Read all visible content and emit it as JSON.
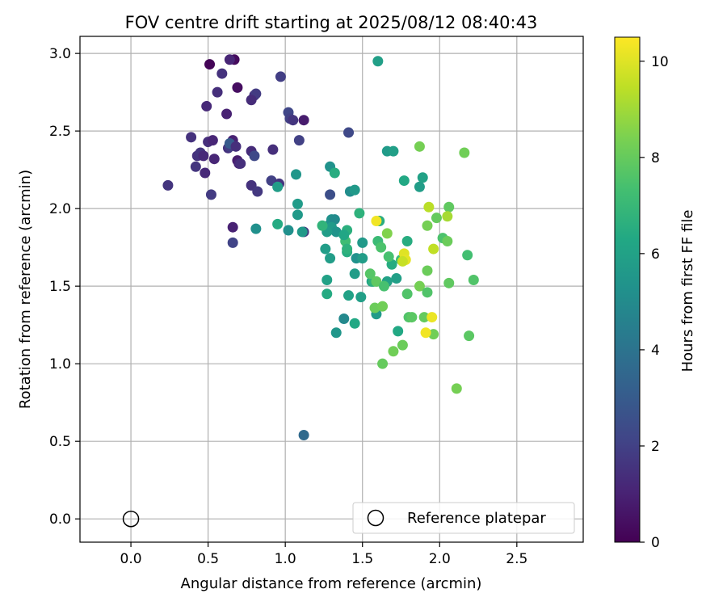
{
  "chart_data": {
    "type": "scatter",
    "title": "FOV centre drift starting at 2025/08/12 08:40:43",
    "xlabel": "Angular distance from reference (arcmin)",
    "ylabel": "Rotation from reference (arcmin)",
    "xlim": [
      -0.33,
      2.93
    ],
    "ylim": [
      -0.15,
      3.11
    ],
    "xticks": [
      "0.0",
      "0.5",
      "1.0",
      "1.5",
      "2.0",
      "2.5"
    ],
    "yticks": [
      "0.0",
      "0.5",
      "1.0",
      "1.5",
      "2.0",
      "2.5",
      "3.0"
    ],
    "grid": true,
    "legend": {
      "position": "lower-right",
      "entries": [
        "Reference platepar"
      ]
    },
    "reference_point": {
      "x": 0.0,
      "y": 0.0,
      "marker": "hollow-circle",
      "label": "Reference platepar"
    },
    "colorbar": {
      "label": "Hours from first FF file",
      "range": [
        0,
        10.5
      ],
      "ticks": [
        "0",
        "2",
        "4",
        "6",
        "8",
        "10"
      ],
      "colormap": "viridis"
    },
    "points": [
      {
        "x": 0.51,
        "y": 2.93,
        "c": 0.1
      },
      {
        "x": 0.67,
        "y": 2.96,
        "c": 0.3
      },
      {
        "x": 0.64,
        "y": 2.96,
        "c": 1.1
      },
      {
        "x": 0.59,
        "y": 2.87,
        "c": 1.5
      },
      {
        "x": 0.69,
        "y": 2.78,
        "c": 0.4
      },
      {
        "x": 0.56,
        "y": 2.75,
        "c": 1.4
      },
      {
        "x": 0.8,
        "y": 2.73,
        "c": 1.5
      },
      {
        "x": 0.81,
        "y": 2.74,
        "c": 1.8
      },
      {
        "x": 0.78,
        "y": 2.7,
        "c": 1.3
      },
      {
        "x": 0.97,
        "y": 2.85,
        "c": 1.9
      },
      {
        "x": 0.49,
        "y": 2.66,
        "c": 1.2
      },
      {
        "x": 0.62,
        "y": 2.61,
        "c": 1.0
      },
      {
        "x": 1.02,
        "y": 2.62,
        "c": 2.2
      },
      {
        "x": 1.03,
        "y": 2.58,
        "c": 2.0
      },
      {
        "x": 1.05,
        "y": 2.57,
        "c": 1.6
      },
      {
        "x": 1.12,
        "y": 2.57,
        "c": 0.8
      },
      {
        "x": 1.41,
        "y": 2.49,
        "c": 2.3
      },
      {
        "x": 0.39,
        "y": 2.46,
        "c": 1.5
      },
      {
        "x": 0.5,
        "y": 2.43,
        "c": 1.4
      },
      {
        "x": 0.53,
        "y": 2.44,
        "c": 1.1
      },
      {
        "x": 0.66,
        "y": 2.44,
        "c": 1.0
      },
      {
        "x": 0.63,
        "y": 2.39,
        "c": 1.5
      },
      {
        "x": 0.64,
        "y": 2.4,
        "c": 1.9
      },
      {
        "x": 0.64,
        "y": 2.42,
        "c": 3.0
      },
      {
        "x": 0.68,
        "y": 2.4,
        "c": 1.4
      },
      {
        "x": 1.09,
        "y": 2.44,
        "c": 2.0
      },
      {
        "x": 0.92,
        "y": 2.38,
        "c": 1.4
      },
      {
        "x": 0.78,
        "y": 2.37,
        "c": 1.3
      },
      {
        "x": 0.43,
        "y": 2.34,
        "c": 1.5
      },
      {
        "x": 0.45,
        "y": 2.36,
        "c": 1.6
      },
      {
        "x": 0.47,
        "y": 2.34,
        "c": 1.2
      },
      {
        "x": 0.8,
        "y": 2.34,
        "c": 2.3
      },
      {
        "x": 0.54,
        "y": 2.32,
        "c": 1.1
      },
      {
        "x": 0.69,
        "y": 2.31,
        "c": 0.8
      },
      {
        "x": 0.7,
        "y": 2.29,
        "c": 1.1
      },
      {
        "x": 0.71,
        "y": 2.29,
        "c": 1.4
      },
      {
        "x": 0.42,
        "y": 2.27,
        "c": 1.6
      },
      {
        "x": 0.48,
        "y": 2.23,
        "c": 1.2
      },
      {
        "x": 0.24,
        "y": 2.15,
        "c": 1.6
      },
      {
        "x": 0.78,
        "y": 2.15,
        "c": 1.5
      },
      {
        "x": 0.91,
        "y": 2.18,
        "c": 2.0
      },
      {
        "x": 0.96,
        "y": 2.16,
        "c": 1.6
      },
      {
        "x": 0.52,
        "y": 2.09,
        "c": 1.8
      },
      {
        "x": 0.82,
        "y": 2.11,
        "c": 1.7
      },
      {
        "x": 1.29,
        "y": 2.09,
        "c": 2.5
      },
      {
        "x": 0.66,
        "y": 1.88,
        "c": 1.0
      },
      {
        "x": 0.66,
        "y": 1.78,
        "c": 2.1
      },
      {
        "x": 1.12,
        "y": 1.85,
        "c": 1.6
      },
      {
        "x": 1.12,
        "y": 0.54,
        "c": 3.6
      },
      {
        "x": 1.6,
        "y": 2.95,
        "c": 5.9
      },
      {
        "x": 1.29,
        "y": 2.27,
        "c": 5.3
      },
      {
        "x": 1.07,
        "y": 2.22,
        "c": 5.5
      },
      {
        "x": 1.32,
        "y": 2.23,
        "c": 6.5
      },
      {
        "x": 0.95,
        "y": 2.14,
        "c": 5.8
      },
      {
        "x": 1.42,
        "y": 2.11,
        "c": 5.1
      },
      {
        "x": 1.45,
        "y": 2.12,
        "c": 5.6
      },
      {
        "x": 1.66,
        "y": 2.37,
        "c": 5.7
      },
      {
        "x": 1.7,
        "y": 2.37,
        "c": 5.9
      },
      {
        "x": 1.77,
        "y": 2.18,
        "c": 6.3
      },
      {
        "x": 1.87,
        "y": 2.14,
        "c": 5.8
      },
      {
        "x": 1.89,
        "y": 2.2,
        "c": 6.0
      },
      {
        "x": 1.08,
        "y": 2.03,
        "c": 5.7
      },
      {
        "x": 1.08,
        "y": 1.96,
        "c": 5.6
      },
      {
        "x": 1.29,
        "y": 1.9,
        "c": 5.3
      },
      {
        "x": 1.3,
        "y": 1.93,
        "c": 5.3
      },
      {
        "x": 1.32,
        "y": 1.93,
        "c": 5.0
      },
      {
        "x": 1.3,
        "y": 1.88,
        "c": 5.7
      },
      {
        "x": 1.33,
        "y": 1.85,
        "c": 5.4
      },
      {
        "x": 1.27,
        "y": 1.85,
        "c": 5.8
      },
      {
        "x": 1.24,
        "y": 1.89,
        "c": 6.8
      },
      {
        "x": 1.48,
        "y": 1.97,
        "c": 6.7
      },
      {
        "x": 0.95,
        "y": 1.9,
        "c": 6.4
      },
      {
        "x": 0.81,
        "y": 1.87,
        "c": 5.2
      },
      {
        "x": 1.02,
        "y": 1.86,
        "c": 5.2
      },
      {
        "x": 1.11,
        "y": 1.85,
        "c": 5.6
      },
      {
        "x": 1.39,
        "y": 1.79,
        "c": 7.2
      },
      {
        "x": 1.4,
        "y": 1.86,
        "c": 6.6
      },
      {
        "x": 1.38,
        "y": 1.83,
        "c": 6.2
      },
      {
        "x": 1.26,
        "y": 1.74,
        "c": 5.8
      },
      {
        "x": 1.4,
        "y": 1.72,
        "c": 6.5
      },
      {
        "x": 1.4,
        "y": 1.74,
        "c": 6.7
      },
      {
        "x": 1.46,
        "y": 1.68,
        "c": 5.3
      },
      {
        "x": 1.5,
        "y": 1.68,
        "c": 5.8
      },
      {
        "x": 1.5,
        "y": 1.78,
        "c": 5.6
      },
      {
        "x": 1.29,
        "y": 1.68,
        "c": 5.8
      },
      {
        "x": 1.27,
        "y": 1.54,
        "c": 6.0
      },
      {
        "x": 1.45,
        "y": 1.58,
        "c": 5.8
      },
      {
        "x": 1.56,
        "y": 1.53,
        "c": 6.1
      },
      {
        "x": 1.57,
        "y": 1.53,
        "c": 6.7
      },
      {
        "x": 1.27,
        "y": 1.45,
        "c": 6.4
      },
      {
        "x": 1.41,
        "y": 1.44,
        "c": 6.0
      },
      {
        "x": 1.49,
        "y": 1.43,
        "c": 5.9
      },
      {
        "x": 1.38,
        "y": 1.29,
        "c": 4.9
      },
      {
        "x": 1.33,
        "y": 1.2,
        "c": 5.5
      },
      {
        "x": 1.45,
        "y": 1.26,
        "c": 6.3
      },
      {
        "x": 1.59,
        "y": 1.32,
        "c": 5.7
      },
      {
        "x": 1.66,
        "y": 1.53,
        "c": 6.0
      },
      {
        "x": 1.72,
        "y": 1.55,
        "c": 5.9
      },
      {
        "x": 1.69,
        "y": 1.64,
        "c": 6.5
      },
      {
        "x": 1.73,
        "y": 1.21,
        "c": 6.3
      },
      {
        "x": 1.79,
        "y": 1.79,
        "c": 6.5
      },
      {
        "x": 1.6,
        "y": 1.79,
        "c": 7.1
      },
      {
        "x": 1.62,
        "y": 1.75,
        "c": 7.5
      },
      {
        "x": 1.67,
        "y": 1.69,
        "c": 7.4
      },
      {
        "x": 1.75,
        "y": 1.67,
        "c": 7.1
      },
      {
        "x": 1.61,
        "y": 1.92,
        "c": 6.5
      },
      {
        "x": 1.66,
        "y": 1.84,
        "c": 8.5
      },
      {
        "x": 1.55,
        "y": 1.58,
        "c": 7.7
      },
      {
        "x": 1.59,
        "y": 1.53,
        "c": 7.9
      },
      {
        "x": 1.64,
        "y": 1.5,
        "c": 7.4
      },
      {
        "x": 1.79,
        "y": 1.45,
        "c": 7.6
      },
      {
        "x": 1.58,
        "y": 1.36,
        "c": 8.1
      },
      {
        "x": 1.63,
        "y": 1.37,
        "c": 8.2
      },
      {
        "x": 1.8,
        "y": 1.3,
        "c": 7.6
      },
      {
        "x": 1.82,
        "y": 1.3,
        "c": 7.8
      },
      {
        "x": 1.76,
        "y": 1.12,
        "c": 8.1
      },
      {
        "x": 1.7,
        "y": 1.08,
        "c": 8.2
      },
      {
        "x": 1.63,
        "y": 1.0,
        "c": 8.0
      },
      {
        "x": 1.87,
        "y": 2.4,
        "c": 8.3
      },
      {
        "x": 2.16,
        "y": 2.36,
        "c": 8.2
      },
      {
        "x": 2.06,
        "y": 2.01,
        "c": 7.9
      },
      {
        "x": 1.98,
        "y": 1.94,
        "c": 8.0
      },
      {
        "x": 1.92,
        "y": 1.89,
        "c": 8.3
      },
      {
        "x": 2.02,
        "y": 1.81,
        "c": 7.5
      },
      {
        "x": 2.05,
        "y": 1.79,
        "c": 8.1
      },
      {
        "x": 2.18,
        "y": 1.7,
        "c": 7.3
      },
      {
        "x": 1.87,
        "y": 1.5,
        "c": 8.3
      },
      {
        "x": 1.92,
        "y": 1.6,
        "c": 8.1
      },
      {
        "x": 1.92,
        "y": 1.46,
        "c": 7.6
      },
      {
        "x": 2.06,
        "y": 1.52,
        "c": 7.9
      },
      {
        "x": 2.22,
        "y": 1.54,
        "c": 7.6
      },
      {
        "x": 1.9,
        "y": 1.3,
        "c": 8.0
      },
      {
        "x": 1.96,
        "y": 1.19,
        "c": 8.2
      },
      {
        "x": 2.19,
        "y": 1.18,
        "c": 7.8
      },
      {
        "x": 2.11,
        "y": 0.84,
        "c": 8.3
      },
      {
        "x": 1.59,
        "y": 1.92,
        "c": 10.3
      },
      {
        "x": 1.77,
        "y": 1.71,
        "c": 10.0
      },
      {
        "x": 1.78,
        "y": 1.67,
        "c": 10.1
      },
      {
        "x": 1.76,
        "y": 1.66,
        "c": 9.6
      },
      {
        "x": 1.93,
        "y": 2.01,
        "c": 9.4
      },
      {
        "x": 2.05,
        "y": 1.95,
        "c": 9.1
      },
      {
        "x": 1.96,
        "y": 1.74,
        "c": 9.5
      },
      {
        "x": 1.95,
        "y": 1.3,
        "c": 10.2
      },
      {
        "x": 1.91,
        "y": 1.2,
        "c": 10.3
      }
    ]
  }
}
